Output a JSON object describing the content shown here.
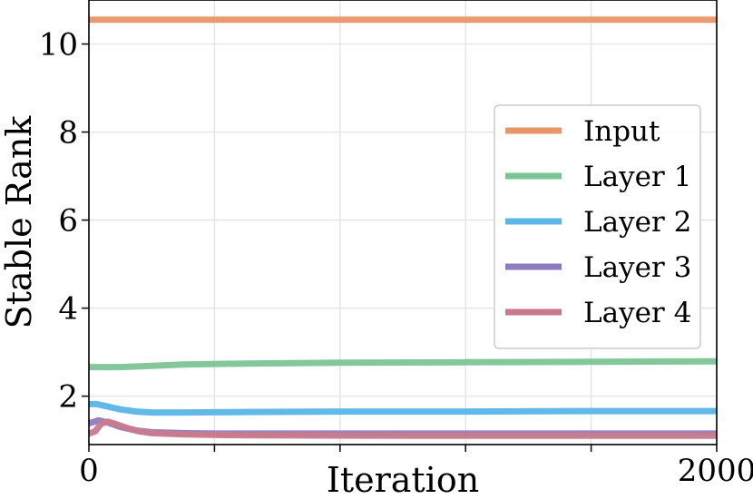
{
  "chart_data": {
    "type": "line",
    "title": "",
    "xlabel": "Iteration",
    "ylabel": "Stable Rank",
    "xlim": [
      0,
      2000
    ],
    "ylim": [
      0.9,
      11.0
    ],
    "x_ticks": [
      0,
      400,
      800,
      1200,
      1600,
      2000
    ],
    "x_tick_labels": [
      "0",
      "",
      "",
      "",
      "",
      "2000"
    ],
    "y_ticks": [
      2,
      4,
      6,
      8,
      10
    ],
    "y_tick_labels": [
      "2",
      "4",
      "6",
      "8",
      "10"
    ],
    "grid": true,
    "legend_position": "center-right",
    "series": [
      {
        "name": "Input",
        "color": "#e8956a",
        "x": [
          0,
          2000
        ],
        "y": [
          10.55,
          10.55
        ]
      },
      {
        "name": "Layer 1",
        "color": "#7cc496",
        "x": [
          0,
          50,
          100,
          200,
          300,
          500,
          800,
          1200,
          1600,
          2000
        ],
        "y": [
          2.66,
          2.66,
          2.66,
          2.69,
          2.72,
          2.74,
          2.76,
          2.77,
          2.78,
          2.79
        ]
      },
      {
        "name": "Layer 2",
        "color": "#5ab5e8",
        "x": [
          0,
          25,
          50,
          100,
          150,
          200,
          300,
          500,
          800,
          1200,
          1600,
          2000
        ],
        "y": [
          1.82,
          1.82,
          1.78,
          1.7,
          1.65,
          1.63,
          1.63,
          1.64,
          1.65,
          1.65,
          1.66,
          1.66
        ]
      },
      {
        "name": "Layer 3",
        "color": "#8e7bbf",
        "x": [
          0,
          30,
          60,
          100,
          150,
          200,
          300,
          400,
          600,
          1000,
          1400,
          2000
        ],
        "y": [
          1.38,
          1.45,
          1.4,
          1.3,
          1.22,
          1.18,
          1.16,
          1.15,
          1.15,
          1.15,
          1.15,
          1.15
        ]
      },
      {
        "name": "Layer 4",
        "color": "#c87a8c",
        "x": [
          0,
          20,
          40,
          60,
          80,
          120,
          160,
          200,
          300,
          500,
          1000,
          1500,
          2000
        ],
        "y": [
          1.15,
          1.2,
          1.38,
          1.42,
          1.38,
          1.28,
          1.2,
          1.16,
          1.13,
          1.11,
          1.1,
          1.1,
          1.1
        ]
      }
    ]
  }
}
